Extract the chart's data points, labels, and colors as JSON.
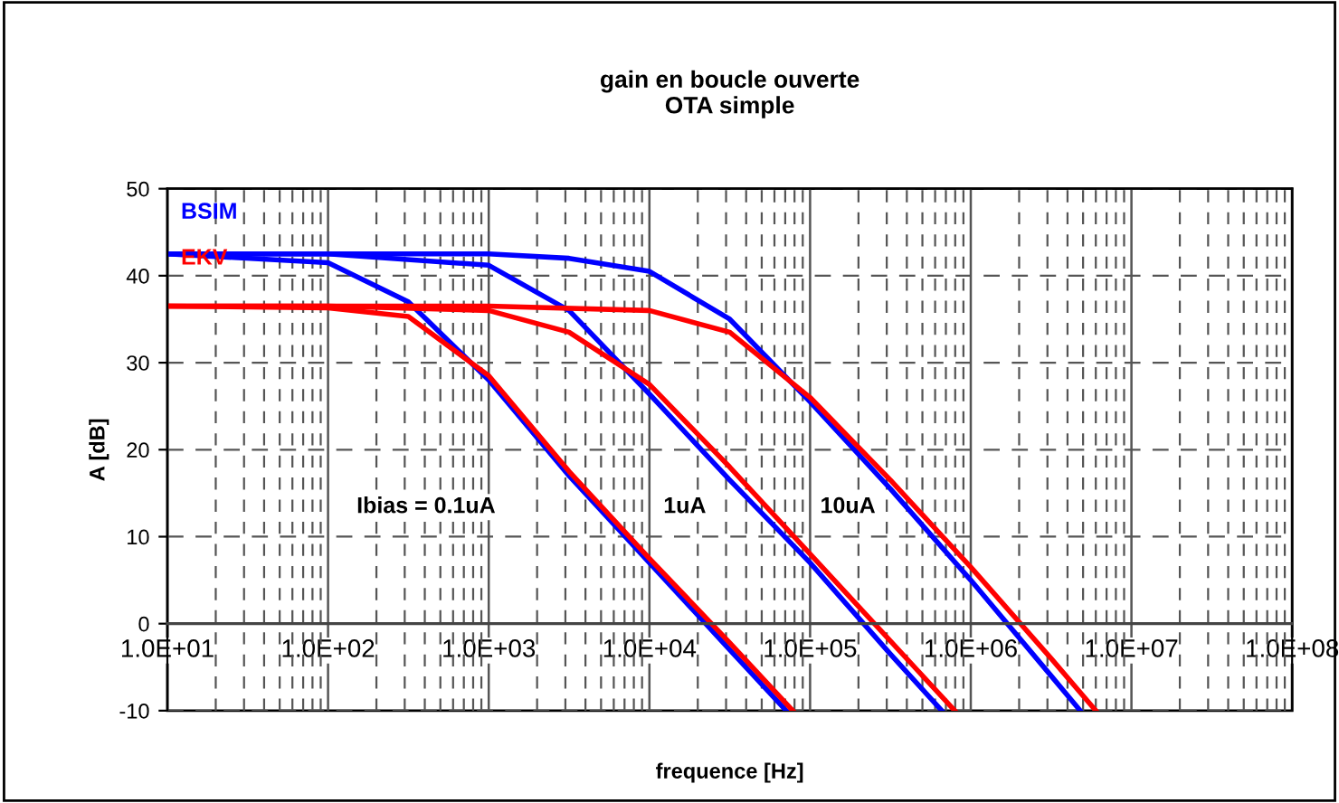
{
  "chart_data": {
    "type": "line",
    "title": "gain en boucle ouverte\nOTA simple",
    "xlabel": "frequence [Hz]",
    "ylabel": "A [dB]",
    "log": "x",
    "grid": true,
    "legend": "top left",
    "marker": "none",
    "line_style": "solid",
    "xlim": [
      10,
      100000000
    ],
    "ylim": [
      -10,
      50
    ],
    "xticks": [
      {
        "value": 10,
        "label": "1.0E+01"
      },
      {
        "value": 100,
        "label": "1.0E+02"
      },
      {
        "value": 1000,
        "label": "1.0E+03"
      },
      {
        "value": 10000,
        "label": "1.0E+04"
      },
      {
        "value": 100000,
        "label": "1.0E+05"
      },
      {
        "value": 1000000,
        "label": "1.0E+06"
      },
      {
        "value": 10000000,
        "label": "1.0E+07"
      },
      {
        "value": 100000000,
        "label": "1.0E+08"
      }
    ],
    "yticks": [
      -10,
      0,
      10,
      20,
      30,
      40,
      50
    ],
    "series": [
      {
        "name": "BSIM",
        "color": "#0000ff",
        "x": [
          10,
          100,
          316,
          1000,
          3162,
          10000,
          31623,
          71000
        ],
        "values": [
          42.5,
          41.5,
          37,
          28,
          17,
          7,
          -3,
          -10
        ]
      },
      {
        "name": "EKV",
        "color": "#ff0000",
        "x": [
          10,
          100,
          316,
          1000,
          3162,
          10000,
          31623,
          78000
        ],
        "values": [
          36.5,
          36.3,
          35.3,
          28.5,
          17.5,
          7.5,
          -2.2,
          -10
        ]
      },
      {
        "color": "#0000ff",
        "x": [
          10,
          100,
          1000,
          3162,
          10000,
          31623,
          100000,
          316228,
          660000
        ],
        "values": [
          42.5,
          42.5,
          41.2,
          36,
          26.4,
          16.5,
          7,
          -3.5,
          -10
        ]
      },
      {
        "color": "#ff0000",
        "x": [
          10,
          100,
          1000,
          3162,
          10000,
          31623,
          100000,
          316228,
          795000
        ],
        "values": [
          36.5,
          36.5,
          36,
          33.5,
          27.5,
          18,
          8,
          -2,
          -10
        ]
      },
      {
        "color": "#0000ff",
        "x": [
          10,
          1000,
          3162,
          10000,
          31623,
          100000,
          316228,
          1000000,
          3162278,
          4800000
        ],
        "values": [
          42.5,
          42.5,
          42,
          40.5,
          35,
          25.5,
          15.5,
          5,
          -6,
          -10
        ]
      },
      {
        "color": "#ff0000",
        "x": [
          10,
          1000,
          10000,
          31623,
          100000,
          316228,
          1000000,
          3162278,
          6000000
        ],
        "values": [
          36.5,
          36.5,
          36,
          33.5,
          26,
          16.5,
          6.5,
          -4,
          -10
        ]
      }
    ],
    "annotations": [
      "Ibias = 0.1uA",
      "1uA",
      "10uA"
    ]
  }
}
